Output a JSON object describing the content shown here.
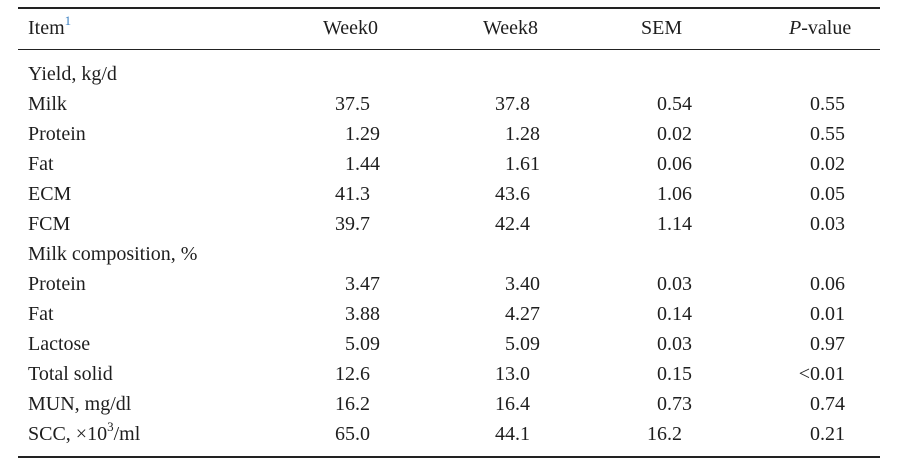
{
  "header": {
    "item": "Item",
    "item_note": "1",
    "week0": "Week0",
    "week8": "Week8",
    "sem": "SEM",
    "pvalue_italic": "P",
    "pvalue_rest": "-value"
  },
  "rows": [
    {
      "section": "Yield, kg/d"
    },
    {
      "item": "Milk",
      "values": [
        "37.5",
        "37.8",
        "0.54",
        "0.55"
      ]
    },
    {
      "item": "Protein",
      "values": [
        "1.29",
        "1.28",
        "0.02",
        "0.55"
      ]
    },
    {
      "item": "Fat",
      "values": [
        "1.44",
        "1.61",
        "0.06",
        "0.02"
      ]
    },
    {
      "item": "ECM",
      "values": [
        "41.3",
        "43.6",
        "1.06",
        "0.05"
      ]
    },
    {
      "item": "FCM",
      "values": [
        "39.7",
        "42.4",
        "1.14",
        "0.03"
      ]
    },
    {
      "section": "Milk composition, %"
    },
    {
      "item": "Protein",
      "values": [
        "3.47",
        "3.40",
        "0.03",
        "0.06"
      ]
    },
    {
      "item": "Fat",
      "values": [
        "3.88",
        "4.27",
        "0.14",
        "0.01"
      ]
    },
    {
      "item": "Lactose",
      "values": [
        "5.09",
        "5.09",
        "0.03",
        "0.97"
      ]
    },
    {
      "item": "Total solid",
      "values": [
        "12.6",
        "13.0",
        "0.15",
        "<0.01"
      ]
    },
    {
      "item": "MUN, mg/dl",
      "values": [
        "16.2",
        "16.4",
        "0.73",
        "0.74"
      ]
    },
    {
      "item": "SCC, ×10",
      "item_sup": "3",
      "item_after": "/ml",
      "values": [
        "65.0",
        "44.1",
        "16.2",
        "0.21"
      ]
    }
  ]
}
